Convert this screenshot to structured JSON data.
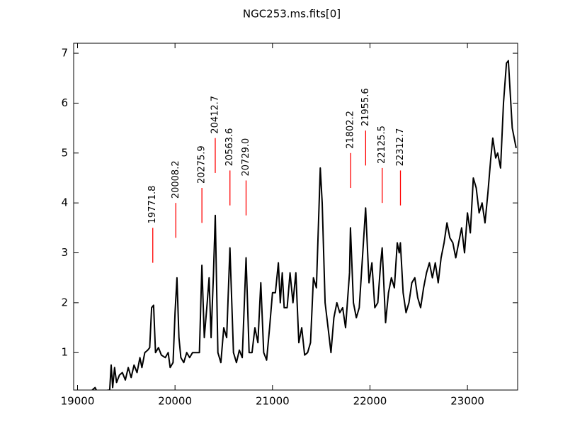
{
  "chart_data": {
    "type": "line",
    "title": "NGC253.ms.fits[0]",
    "color": "#000000",
    "annotation_color": "#ff0000",
    "xlim": [
      18960,
      23515
    ],
    "ylim": [
      0.25,
      7.2
    ],
    "xticks": [
      19000,
      20000,
      21000,
      22000,
      23000
    ],
    "yticks": [
      1,
      2,
      3,
      4,
      5,
      6,
      7
    ],
    "x": [
      19150,
      19180,
      19200,
      19330,
      19345,
      19360,
      19380,
      19400,
      19430,
      19460,
      19490,
      19520,
      19550,
      19580,
      19610,
      19640,
      19660,
      19690,
      19720,
      19740,
      19760,
      19780,
      19800,
      19830,
      19860,
      19900,
      19930,
      19950,
      19980,
      20000,
      20020,
      20040,
      20060,
      20090,
      20120,
      20150,
      20180,
      20220,
      20250,
      20276,
      20300,
      20330,
      20350,
      20370,
      20395,
      20413,
      20440,
      20470,
      20500,
      20530,
      20563,
      20600,
      20630,
      20660,
      20690,
      20729,
      20760,
      20790,
      20820,
      20850,
      20880,
      20910,
      20940,
      20970,
      21000,
      21030,
      21060,
      21080,
      21100,
      21120,
      21150,
      21180,
      21210,
      21240,
      21270,
      21300,
      21330,
      21360,
      21390,
      21420,
      21450,
      21490,
      21510,
      21540,
      21570,
      21600,
      21630,
      21660,
      21690,
      21720,
      21750,
      21790,
      21800,
      21830,
      21860,
      21890,
      21920,
      21955,
      21990,
      22020,
      22050,
      22080,
      22110,
      22125,
      22160,
      22190,
      22220,
      22250,
      22280,
      22300,
      22312,
      22340,
      22370,
      22400,
      22430,
      22460,
      22490,
      22520,
      22550,
      22580,
      22610,
      22640,
      22670,
      22700,
      22730,
      22760,
      22790,
      22820,
      22850,
      22880,
      22910,
      22940,
      22970,
      23000,
      23030,
      23060,
      23090,
      23120,
      23150,
      23180,
      23210,
      23240,
      23260,
      23290,
      23310,
      23340,
      23370,
      23400,
      23420,
      23460,
      23500
    ],
    "values": [
      0.25,
      0.3,
      0.22,
      0.25,
      0.75,
      0.3,
      0.7,
      0.4,
      0.55,
      0.6,
      0.45,
      0.7,
      0.5,
      0.75,
      0.6,
      0.9,
      0.7,
      1.0,
      1.05,
      1.1,
      1.9,
      1.95,
      1.0,
      1.1,
      0.95,
      0.9,
      1.0,
      0.7,
      0.8,
      1.8,
      2.5,
      1.3,
      0.9,
      0.8,
      1.0,
      0.9,
      1.0,
      1.0,
      1.0,
      2.75,
      1.3,
      2.0,
      2.5,
      1.3,
      2.6,
      3.75,
      1.0,
      0.8,
      1.5,
      1.3,
      3.1,
      1.0,
      0.8,
      1.05,
      0.9,
      2.9,
      1.0,
      1.0,
      1.5,
      1.2,
      2.4,
      1.0,
      0.85,
      1.5,
      2.2,
      2.2,
      2.8,
      2.0,
      2.6,
      1.9,
      1.9,
      2.6,
      2.0,
      2.6,
      1.2,
      1.5,
      0.95,
      1.0,
      1.2,
      2.5,
      2.3,
      4.7,
      4.0,
      2.0,
      1.5,
      1.0,
      1.7,
      2.0,
      1.8,
      1.9,
      1.5,
      2.6,
      3.5,
      2.0,
      1.7,
      1.9,
      2.8,
      3.9,
      2.4,
      2.8,
      1.9,
      2.0,
      2.8,
      3.1,
      1.6,
      2.2,
      2.5,
      2.3,
      3.2,
      3.0,
      3.2,
      2.2,
      1.8,
      2.0,
      2.4,
      2.5,
      2.1,
      1.9,
      2.3,
      2.6,
      2.8,
      2.5,
      2.8,
      2.4,
      2.9,
      3.2,
      3.6,
      3.3,
      3.2,
      2.9,
      3.2,
      3.5,
      3.0,
      3.8,
      3.4,
      4.5,
      4.3,
      3.8,
      4.0,
      3.6,
      4.2,
      4.9,
      5.3,
      4.9,
      5.0,
      4.7,
      6.0,
      6.8,
      6.85,
      5.5,
      5.1
    ],
    "lines": [
      {
        "label": "19771.8",
        "x": 19771.8,
        "ymin": 2.8,
        "ymax": 3.5
      },
      {
        "label": "20008.2",
        "x": 20008.2,
        "ymin": 3.3,
        "ymax": 4.0
      },
      {
        "label": "20275.9",
        "x": 20275.9,
        "ymin": 3.6,
        "ymax": 4.3
      },
      {
        "label": "20412.7",
        "x": 20412.7,
        "ymin": 4.6,
        "ymax": 5.3
      },
      {
        "label": "20563.6",
        "x": 20563.6,
        "ymin": 3.95,
        "ymax": 4.65
      },
      {
        "label": "20729.0",
        "x": 20729.0,
        "ymin": 3.75,
        "ymax": 4.45
      },
      {
        "label": "21802.2",
        "x": 21802.2,
        "ymin": 4.3,
        "ymax": 5.0
      },
      {
        "label": "21955.6",
        "x": 21955.6,
        "ymin": 4.75,
        "ymax": 5.45
      },
      {
        "label": "22125.5",
        "x": 22125.5,
        "ymin": 4.0,
        "ymax": 4.7
      },
      {
        "label": "22312.7",
        "x": 22312.7,
        "ymin": 3.95,
        "ymax": 4.65
      }
    ]
  }
}
